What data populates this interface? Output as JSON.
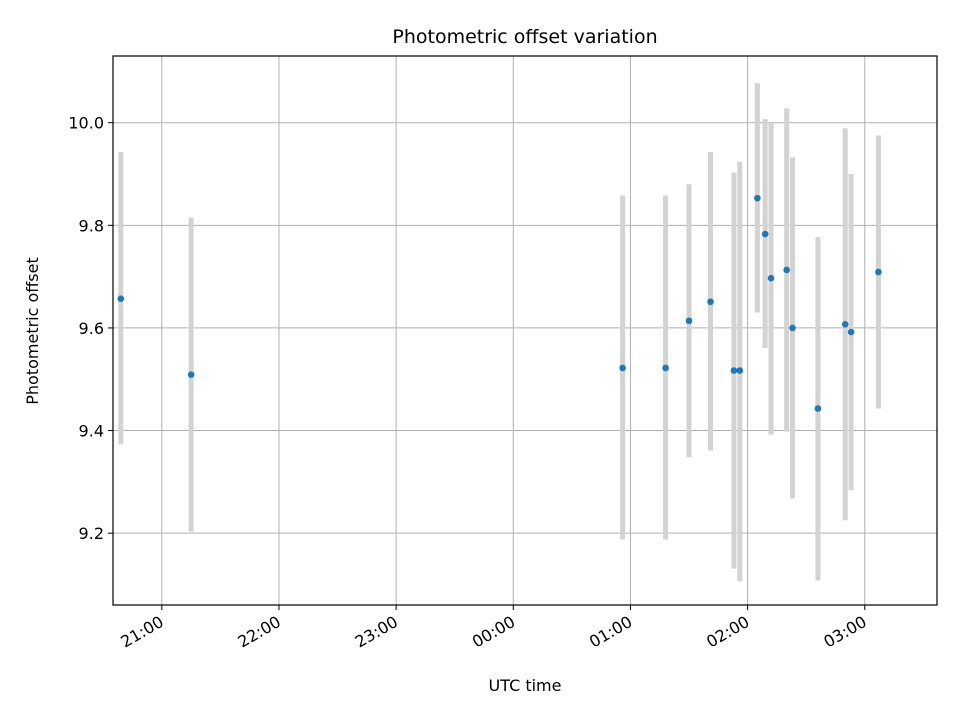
{
  "chart_data": {
    "type": "scatter",
    "title": "Photometric offset variation",
    "xlabel": "UTC time",
    "ylabel": "Photometric offset",
    "grid": true,
    "x_ticks": [
      "21:00",
      "22:00",
      "23:00",
      "00:00",
      "01:00",
      "02:00",
      "03:00"
    ],
    "y_ticks": [
      "9.2",
      "9.4",
      "9.6",
      "9.8",
      "10.0"
    ],
    "xlim": [
      "20:35",
      "03:37"
    ],
    "ylim": [
      9.06,
      10.13
    ],
    "colors": {
      "point": "#1f77b4",
      "errorbar": "#d3d3d3",
      "grid": "#b0b0b0",
      "axes": "#000000"
    },
    "series": [
      {
        "points": [
          {
            "x": "20:39",
            "y": 9.657,
            "ylow": 9.373,
            "yhigh": 9.943
          },
          {
            "x": "21:15",
            "y": 9.509,
            "ylow": 9.203,
            "yhigh": 9.815
          },
          {
            "x": "00:56",
            "y": 9.522,
            "ylow": 9.188,
            "yhigh": 9.858
          },
          {
            "x": "01:18",
            "y": 9.522,
            "ylow": 9.188,
            "yhigh": 9.858
          },
          {
            "x": "01:30",
            "y": 9.614,
            "ylow": 9.348,
            "yhigh": 9.88
          },
          {
            "x": "01:41",
            "y": 9.651,
            "ylow": 9.361,
            "yhigh": 9.943
          },
          {
            "x": "01:53",
            "y": 9.517,
            "ylow": 9.131,
            "yhigh": 9.903
          },
          {
            "x": "01:56",
            "y": 9.517,
            "ylow": 9.106,
            "yhigh": 9.924
          },
          {
            "x": "02:05",
            "y": 9.853,
            "ylow": 9.63,
            "yhigh": 10.077
          },
          {
            "x": "02:09",
            "y": 9.783,
            "ylow": 9.561,
            "yhigh": 10.007
          },
          {
            "x": "02:12",
            "y": 9.697,
            "ylow": 9.392,
            "yhigh": 10.0
          },
          {
            "x": "02:20",
            "y": 9.713,
            "ylow": 9.398,
            "yhigh": 10.028
          },
          {
            "x": "02:23",
            "y": 9.6,
            "ylow": 9.268,
            "yhigh": 9.933
          },
          {
            "x": "02:36",
            "y": 9.443,
            "ylow": 9.108,
            "yhigh": 9.777
          },
          {
            "x": "02:50",
            "y": 9.607,
            "ylow": 9.225,
            "yhigh": 9.989
          },
          {
            "x": "02:53",
            "y": 9.592,
            "ylow": 9.284,
            "yhigh": 9.9
          },
          {
            "x": "03:07",
            "y": 9.709,
            "ylow": 9.443,
            "yhigh": 9.975
          }
        ]
      }
    ]
  }
}
